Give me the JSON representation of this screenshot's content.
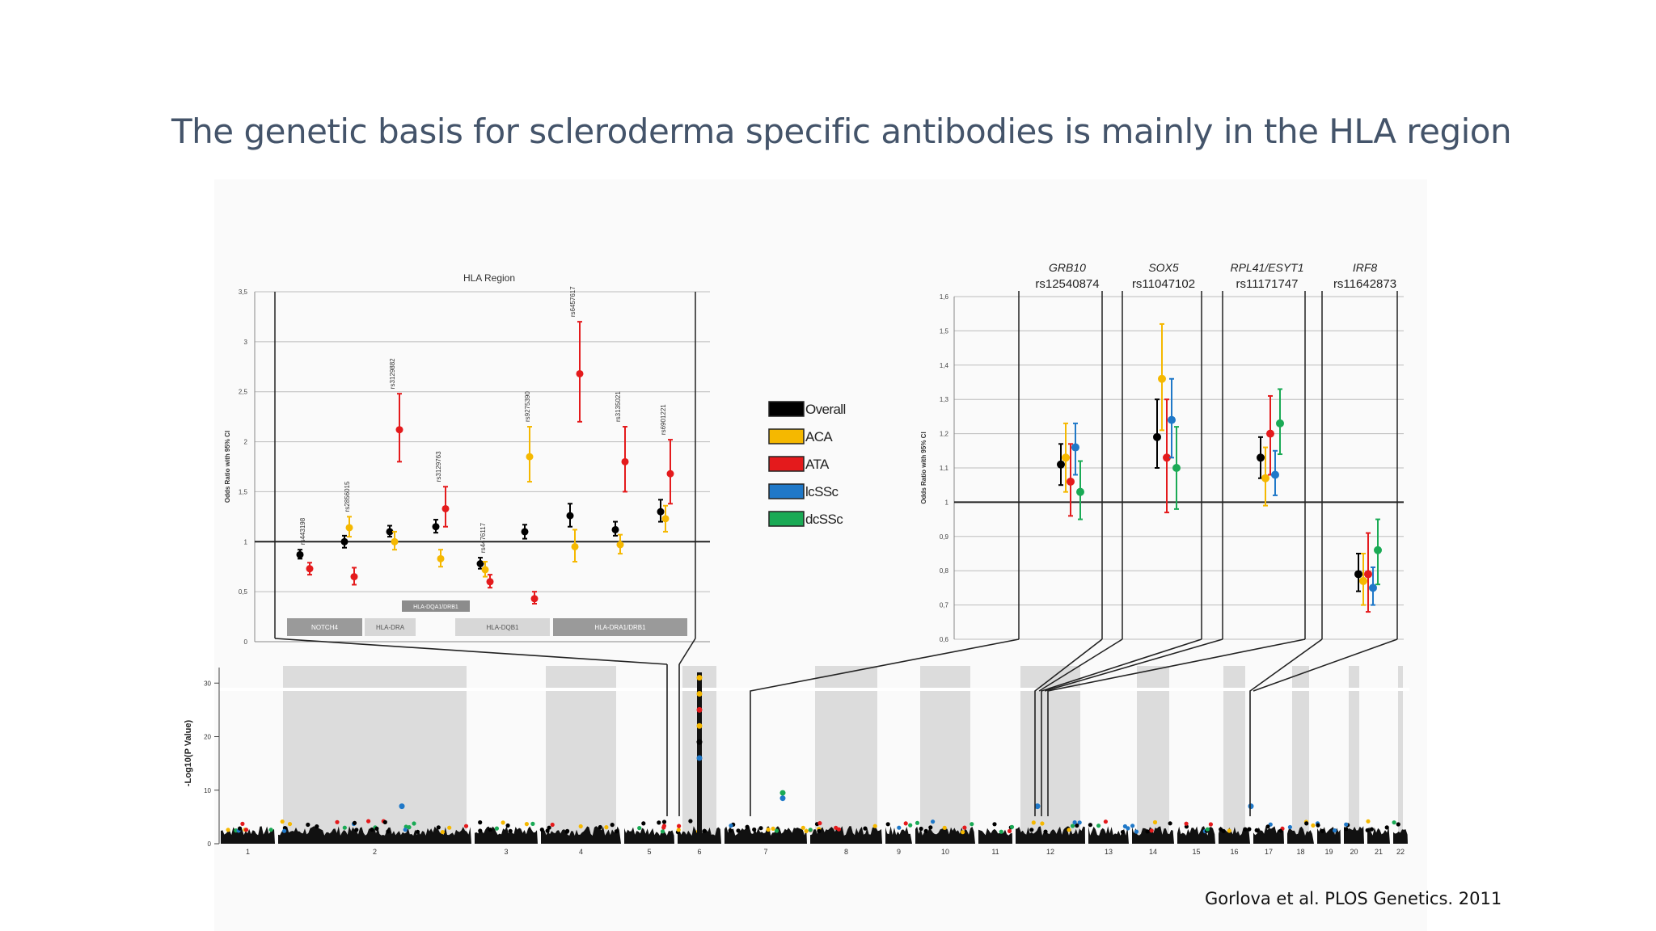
{
  "slide": {
    "title": "The genetic basis for scleroderma specific antibodies is mainly in the HLA  region",
    "citation": "Gorlova  et al. PLOS Genetics. 2011"
  },
  "colors": {
    "title_text": "#44546a",
    "Overall": "#000000",
    "ACA": "#f5b800",
    "ATA": "#e41a1c",
    "lcSSc": "#1f78c8",
    "dcSSc": "#1aaa55",
    "chrom_band": "#dcdcdc"
  },
  "chart_data": [
    {
      "type": "scatter",
      "panel": "hla",
      "title": "HLA Region",
      "ylabel": "Odds Ratio with 95% CI",
      "ylim": [
        0,
        3.5
      ],
      "yticks": [
        0,
        0.5,
        1,
        1.5,
        2,
        2.5,
        3,
        3.5
      ],
      "ytick_labels": [
        "0",
        "0,5",
        "1",
        "1,5",
        "2",
        "2,5",
        "3",
        "3,5"
      ],
      "reference_line": 1,
      "series_order": [
        "Overall",
        "ACA",
        "ATA"
      ],
      "snps": [
        {
          "label": "rs443198",
          "Overall": [
            0.87,
            0.83,
            0.92
          ],
          "ATA": [
            0.73,
            0.67,
            0.79
          ]
        },
        {
          "label": "rs2856015",
          "Overall": [
            1.0,
            0.94,
            1.06
          ],
          "ACA": [
            1.14,
            1.05,
            1.25
          ],
          "ATA": [
            0.65,
            0.57,
            0.74
          ]
        },
        {
          "label": "rs3129882",
          "Overall": [
            1.1,
            1.05,
            1.16
          ],
          "ACA": [
            1.0,
            0.92,
            1.1
          ],
          "ATA": [
            2.12,
            1.8,
            2.48
          ]
        },
        {
          "label": "rs3129763",
          "Overall": [
            1.15,
            1.09,
            1.22
          ],
          "ACA": [
            0.83,
            0.75,
            0.92
          ],
          "ATA": [
            1.33,
            1.15,
            1.55
          ]
        },
        {
          "label": "rs4476117",
          "Overall": [
            0.78,
            0.73,
            0.84
          ],
          "ACA": [
            0.72,
            0.65,
            0.8
          ],
          "ATA": [
            0.6,
            0.54,
            0.67
          ]
        },
        {
          "label": "rs9275390",
          "Overall": [
            1.1,
            1.03,
            1.17
          ],
          "ACA": [
            1.85,
            1.6,
            2.15
          ],
          "ATA": [
            0.43,
            0.38,
            0.5
          ]
        },
        {
          "label": "rs6457617",
          "Overall": [
            1.26,
            1.15,
            1.38
          ],
          "ACA": [
            0.95,
            0.8,
            1.12
          ],
          "ATA": [
            2.68,
            2.2,
            3.2
          ]
        },
        {
          "label": "rs3135021",
          "Overall": [
            1.12,
            1.06,
            1.2
          ],
          "ACA": [
            0.97,
            0.88,
            1.07
          ],
          "ATA": [
            1.8,
            1.5,
            2.15
          ]
        },
        {
          "label": "rs6901221",
          "Overall": [
            1.3,
            1.2,
            1.42
          ],
          "ACA": [
            1.23,
            1.1,
            1.36
          ],
          "ATA": [
            1.68,
            1.38,
            2.02
          ]
        }
      ],
      "genes_upper": [
        {
          "label": "HLA-DQA1/DRB1"
        }
      ],
      "genes_lower": [
        {
          "label": "NOTCH4"
        },
        {
          "label": "HLA-DRA"
        },
        {
          "label": "HLA-DQB1"
        },
        {
          "label": "HLA-DRA1/DRB1"
        }
      ]
    },
    {
      "type": "scatter",
      "panel": "non_hla",
      "ylabel": "Odds Ratio with 95% CI",
      "ylim": [
        0.6,
        1.6
      ],
      "yticks": [
        0.6,
        0.7,
        0.8,
        0.9,
        1.0,
        1.1,
        1.2,
        1.3,
        1.4,
        1.5,
        1.6
      ],
      "ytick_labels": [
        "0,6",
        "0,7",
        "0,8",
        "0,9",
        "1",
        "1,1",
        "1,2",
        "1,3",
        "1,4",
        "1,5",
        "1,6"
      ],
      "reference_line": 1,
      "series_order": [
        "Overall",
        "ACA",
        "ATA",
        "lcSSc",
        "dcSSc"
      ],
      "loci": [
        {
          "gene": "GRB10",
          "snp": "rs12540874",
          "Overall": [
            1.11,
            1.05,
            1.17
          ],
          "ACA": [
            1.13,
            1.03,
            1.23
          ],
          "ATA": [
            1.06,
            0.96,
            1.17
          ],
          "lcSSc": [
            1.16,
            1.08,
            1.23
          ],
          "dcSSc": [
            1.03,
            0.95,
            1.12
          ]
        },
        {
          "gene": "SOX5",
          "snp": "rs11047102",
          "Overall": [
            1.19,
            1.1,
            1.3
          ],
          "ACA": [
            1.36,
            1.21,
            1.52
          ],
          "ATA": [
            1.13,
            0.97,
            1.3
          ],
          "lcSSc": [
            1.24,
            1.13,
            1.36
          ],
          "dcSSc": [
            1.1,
            0.98,
            1.22
          ]
        },
        {
          "gene": "RPL41/ESYT1",
          "snp": "rs11171747",
          "Overall": [
            1.13,
            1.07,
            1.19
          ],
          "ACA": [
            1.07,
            0.99,
            1.16
          ],
          "ATA": [
            1.2,
            1.08,
            1.31
          ],
          "lcSSc": [
            1.08,
            1.02,
            1.15
          ],
          "dcSSc": [
            1.23,
            1.14,
            1.33
          ]
        },
        {
          "gene": "IRF8",
          "snp": "rs11642873",
          "Overall": [
            0.79,
            0.74,
            0.85
          ],
          "ACA": [
            0.77,
            0.7,
            0.85
          ],
          "ATA": [
            0.79,
            0.68,
            0.91
          ],
          "lcSSc": [
            0.75,
            0.7,
            0.81
          ],
          "dcSSc": [
            0.86,
            0.76,
            0.95
          ]
        }
      ]
    },
    {
      "type": "scatter",
      "panel": "manhattan",
      "ylabel": "-Log10(P Value)",
      "ylim": [
        0,
        32
      ],
      "yticks": [
        0,
        10,
        20,
        30
      ],
      "chromosomes": [
        "1",
        "2",
        "3",
        "4",
        "5",
        "6",
        "7",
        "8",
        "9",
        "10",
        "11",
        "12",
        "13",
        "14",
        "15",
        "16",
        "17",
        "18",
        "19",
        "20",
        "21",
        "22"
      ],
      "notable_points": [
        {
          "chrom": "2",
          "y": 7,
          "color": "lcSSc"
        },
        {
          "chrom": "6",
          "y": 31,
          "color": "ACA"
        },
        {
          "chrom": "6",
          "y": 28,
          "color": "ACA"
        },
        {
          "chrom": "6",
          "y": 25,
          "color": "ATA"
        },
        {
          "chrom": "6",
          "y": 22,
          "color": "ACA"
        },
        {
          "chrom": "6",
          "y": 19,
          "color": "Overall"
        },
        {
          "chrom": "6",
          "y": 16,
          "color": "lcSSc"
        },
        {
          "chrom": "7",
          "y": 9.5,
          "color": "dcSSc"
        },
        {
          "chrom": "7",
          "y": 8.5,
          "color": "lcSSc"
        },
        {
          "chrom": "12",
          "y": 7,
          "color": "lcSSc"
        },
        {
          "chrom": "16",
          "y": 7,
          "color": "lcSSc"
        }
      ]
    }
  ],
  "legend": [
    {
      "label": "Overall",
      "color": "#000000"
    },
    {
      "label": "ACA",
      "color": "#f5b800"
    },
    {
      "label": "ATA",
      "color": "#e41a1c"
    },
    {
      "label": "lcSSc",
      "color": "#1f78c8"
    },
    {
      "label": "dcSSc",
      "color": "#1aaa55"
    }
  ]
}
